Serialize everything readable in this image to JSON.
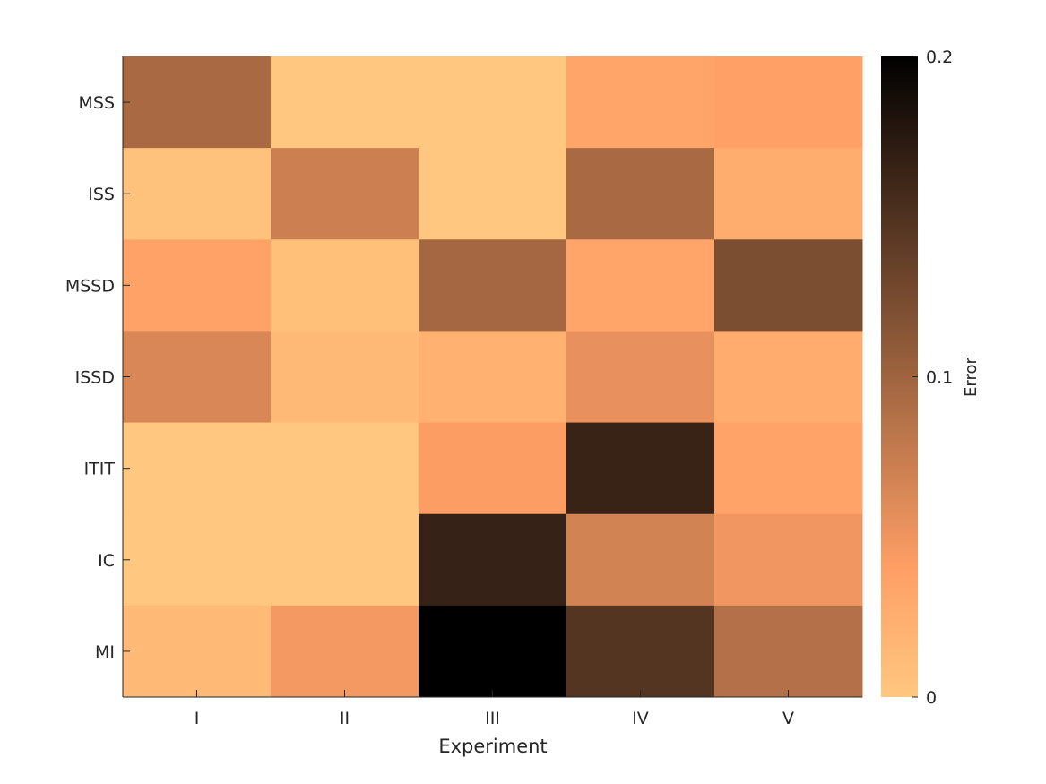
{
  "chart_data": {
    "type": "heatmap",
    "title": "",
    "xlabel": "Experiment",
    "ylabel": "",
    "x_categories": [
      "I",
      "II",
      "III",
      "IV",
      "V"
    ],
    "y_categories": [
      "MSS",
      "ISS",
      "MSSD",
      "ISSD",
      "ITIT",
      "IC",
      "MI"
    ],
    "values": [
      [
        0.094,
        0.0,
        0.0,
        0.034,
        0.038
      ],
      [
        0.005,
        0.072,
        0.0,
        0.094,
        0.026
      ],
      [
        0.037,
        0.007,
        0.097,
        0.034,
        0.122
      ],
      [
        0.064,
        0.013,
        0.022,
        0.054,
        0.027
      ],
      [
        0.0,
        0.0,
        0.042,
        0.165,
        0.036
      ],
      [
        0.0,
        0.0,
        0.166,
        0.068,
        0.049
      ],
      [
        0.013,
        0.046,
        0.2,
        0.147,
        0.087
      ]
    ],
    "colorbar": {
      "label": "Error",
      "range": [
        0,
        0.2
      ],
      "ticks": [
        0,
        0.1,
        0.2
      ],
      "tick_labels": [
        "0",
        "0.1",
        "0.2"
      ],
      "colormap": "copper-reversed"
    },
    "grid": false
  }
}
